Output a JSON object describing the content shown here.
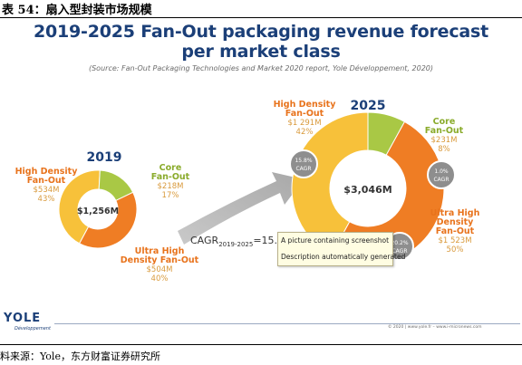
{
  "caption": "表 54：扇入型封装市场规模",
  "data_source": "料来源：Yole，东方财富证券研究所",
  "footer": {
    "logo": "YOLE",
    "logo_sub": "Développement",
    "copyright": "© 2020 | www.yole.fr – www.i-micronews.com"
  },
  "tooltip": {
    "line1": "A picture containing screenshot",
    "line2": "Description automatically generated"
  },
  "colors": {
    "title": "#1b3f78",
    "high_density": "#f7c13a",
    "core": "#a9c845",
    "ultra_high_density": "#ef7d24",
    "label_orange": "#e8731c",
    "value_orange": "#d99a3c",
    "core_label": "#8aab2b",
    "cagr_badge": "#8e8e8e"
  },
  "chart_data": {
    "type": "pie",
    "title": "2019-2025 Fan-Out packaging revenue forecast",
    "title_line2": "per market class",
    "subtitle": "(Source: Fan-Out Packaging Technologies and Market 2020 report, Yole Développement, 2020)",
    "cagr_total_label": "CAGR",
    "cagr_total_sub": "2019-2025",
    "cagr_total_value": "=15.9",
    "charts": [
      {
        "year": "2019",
        "total": "$1,256M",
        "slices": [
          {
            "name_lines": [
              "High Density",
              "Fan-Out"
            ],
            "value_label": "$534M",
            "percent_label": "43%",
            "percent": 43,
            "color": "#f7c13a"
          },
          {
            "name_lines": [
              "Core",
              "Fan-Out"
            ],
            "value_label": "$218M",
            "percent_label": "17%",
            "percent": 17,
            "color": "#a9c845"
          },
          {
            "name_lines": [
              "Ultra High",
              "Density Fan-Out"
            ],
            "value_label": "$504M",
            "percent_label": "40%",
            "percent": 40,
            "color": "#ef7d24"
          }
        ]
      },
      {
        "year": "2025",
        "total": "$3,046M",
        "slices": [
          {
            "name_lines": [
              "High Density",
              "Fan-Out"
            ],
            "value_label": "$1 291M",
            "percent_label": "42%",
            "percent": 42,
            "color": "#f7c13a",
            "cagr_lines": [
              "15.8%",
              "CAGR"
            ]
          },
          {
            "name_lines": [
              "Core",
              "Fan-Out"
            ],
            "value_label": "$231M",
            "percent_label": "8%",
            "percent": 8,
            "color": "#a9c845",
            "cagr_lines": [
              "1.0%",
              "CAGR"
            ]
          },
          {
            "name_lines": [
              "Ultra High",
              "Density",
              "Fan-Out"
            ],
            "value_label": "$1 523M",
            "percent_label": "50%",
            "percent": 50,
            "color": "#ef7d24",
            "cagr_lines": [
              "20.2%",
              "CAGR"
            ]
          }
        ]
      }
    ]
  }
}
